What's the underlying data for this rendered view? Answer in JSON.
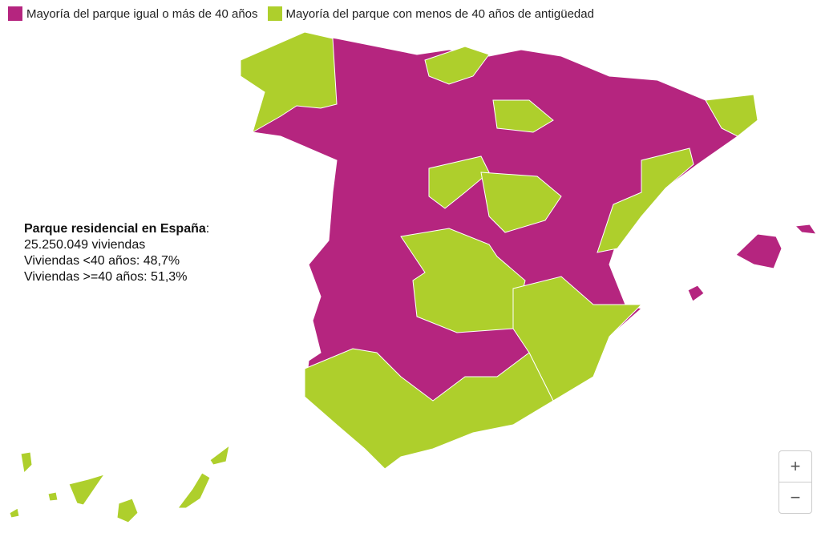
{
  "legend": [
    {
      "label": "Mayoría del parque igual o más de 40 años",
      "color": "#b5257f"
    },
    {
      "label": "Mayoría del parque con menos de 40 años de antigüedad",
      "color": "#aecf2c"
    }
  ],
  "info": {
    "title": "Parque residencial en España",
    "separator": ":",
    "lines": [
      "25.250.049 viviendas",
      "Viviendas <40 años: 48,7%",
      "Viviendas >=40 años: 51,3%"
    ]
  },
  "zoom": {
    "in": "+",
    "out": "−"
  }
}
